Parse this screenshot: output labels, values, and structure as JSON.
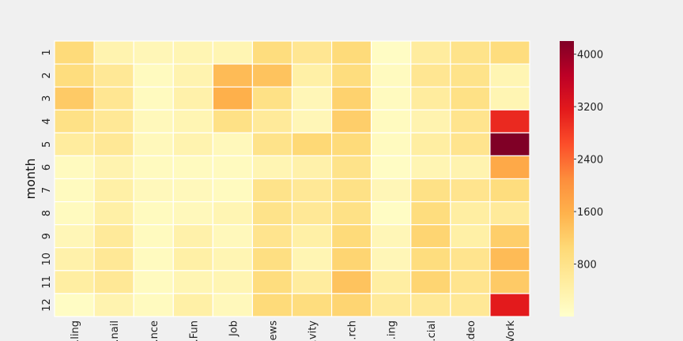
{
  "chart_data": {
    "type": "heatmap",
    "title": "",
    "xlabel": "",
    "ylabel": "month",
    "columns": [
      "…ling",
      "…nail",
      "…nce",
      "…Fun",
      "Job",
      "…ews",
      "…vity",
      "…rch",
      "…ing",
      "…cial",
      "…deo",
      "…Vork"
    ],
    "rows": [
      "1",
      "2",
      "3",
      "4",
      "5",
      "6",
      "7",
      "8",
      "9",
      "10",
      "11",
      "12"
    ],
    "values": [
      [
        1000,
        350,
        250,
        300,
        300,
        950,
        700,
        1000,
        100,
        550,
        800,
        950
      ],
      [
        950,
        650,
        150,
        350,
        1450,
        1350,
        450,
        950,
        150,
        700,
        800,
        300
      ],
      [
        1250,
        700,
        150,
        400,
        1600,
        850,
        250,
        1150,
        150,
        550,
        850,
        300
      ],
      [
        850,
        650,
        200,
        300,
        850,
        600,
        250,
        1200,
        150,
        350,
        750,
        3000
      ],
      [
        550,
        650,
        200,
        350,
        200,
        800,
        1050,
        1000,
        150,
        500,
        750,
        4200
      ],
      [
        150,
        350,
        150,
        150,
        150,
        300,
        400,
        800,
        100,
        300,
        350,
        1700
      ],
      [
        150,
        450,
        200,
        200,
        150,
        800,
        650,
        850,
        250,
        850,
        750,
        950
      ],
      [
        150,
        450,
        150,
        200,
        300,
        800,
        650,
        850,
        100,
        950,
        500,
        600
      ],
      [
        250,
        600,
        150,
        400,
        200,
        750,
        450,
        1000,
        250,
        1100,
        450,
        1200
      ],
      [
        400,
        650,
        150,
        450,
        300,
        900,
        300,
        1100,
        250,
        950,
        750,
        1450
      ],
      [
        500,
        650,
        150,
        300,
        300,
        950,
        550,
        1350,
        500,
        1100,
        750,
        1250
      ],
      [
        100,
        350,
        150,
        450,
        200,
        1000,
        950,
        1100,
        600,
        650,
        650,
        3150
      ]
    ],
    "colorbar": {
      "min": 0,
      "max": 4200,
      "ticks": [
        800,
        1600,
        2400,
        3200,
        4000
      ]
    },
    "colormap": "YlOrRd",
    "colormap_stops": [
      "#ffffcc",
      "#ffeda0",
      "#fed976",
      "#feb24c",
      "#fd8d3c",
      "#fc4e2a",
      "#e31a1c",
      "#bd0026",
      "#800026"
    ],
    "grid_line_color": "#ffffff",
    "background": "#f0f0f0"
  }
}
